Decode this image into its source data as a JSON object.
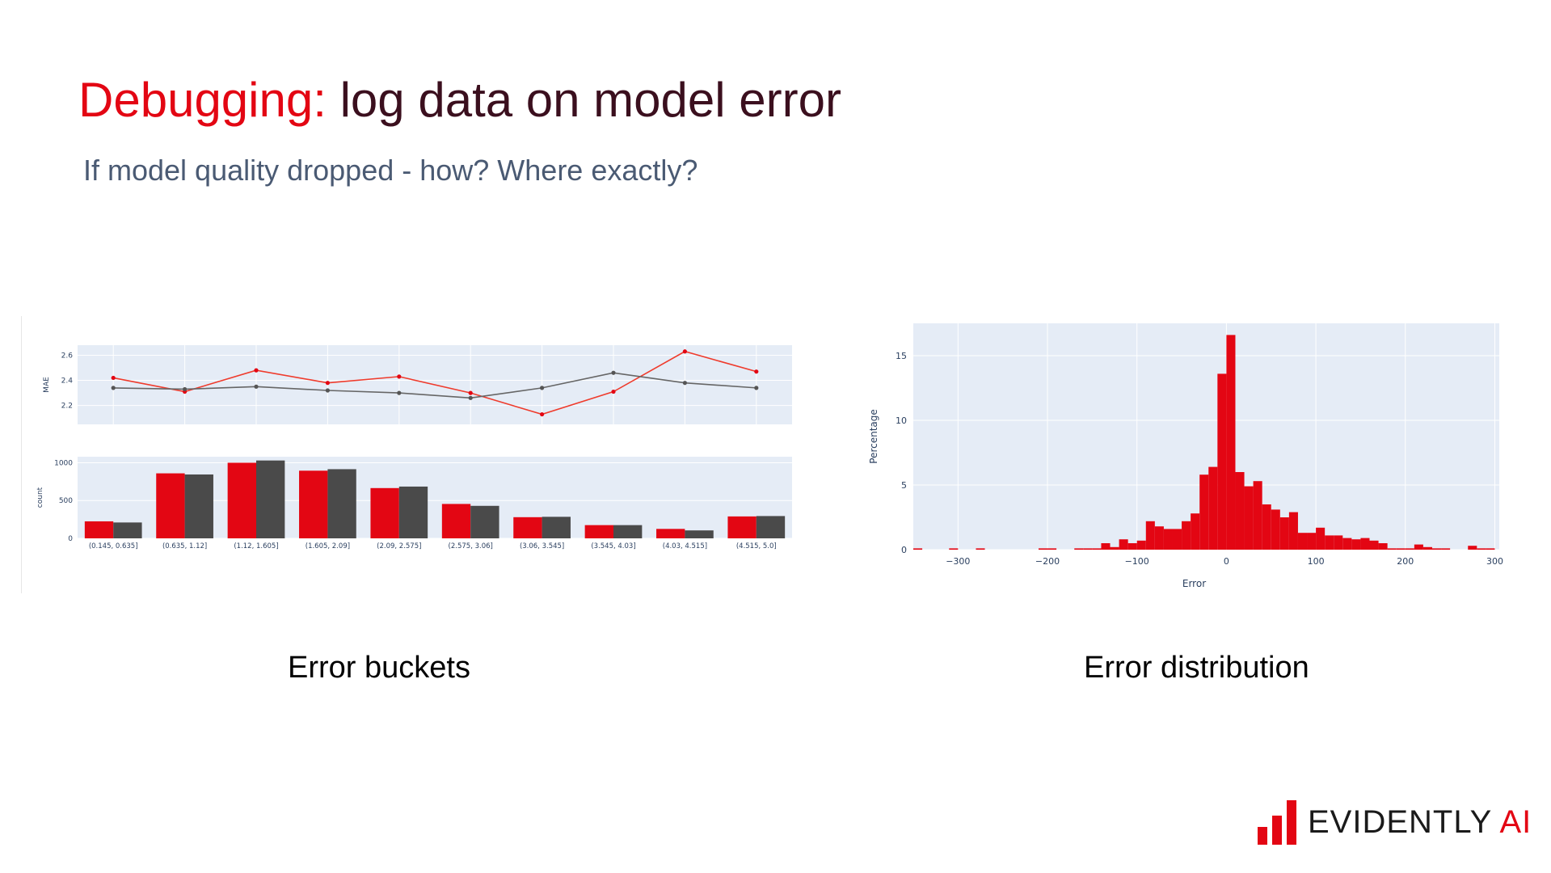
{
  "slide": {
    "title_accent": "Debugging:",
    "title_rest": " log data on model error",
    "subtitle": "If model quality dropped - how? Where exactly?",
    "caption_left": "Error buckets",
    "caption_right": "Error distribution",
    "logo_main": "EVIDENTLY",
    "logo_ai": " AI"
  },
  "colors": {
    "red": "#e30613",
    "dark": "#4a4a4a",
    "line_red": "#ef3b2c",
    "line_gray": "#666666",
    "plot_bg": "#e5ecf6"
  },
  "chart_data": [
    {
      "type": "line",
      "ylabel": "MAE",
      "ylim": [
        2.05,
        2.68
      ],
      "yticks": [
        "2.2",
        "2.4",
        "2.6"
      ],
      "categories": [
        "(0.145, 0.635]",
        "(0.635, 1.12]",
        "(1.12, 1.605]",
        "(1.605, 2.09]",
        "(2.09, 2.575]",
        "(2.575, 3.06]",
        "(3.06, 3.545]",
        "(3.545, 4.03]",
        "(4.03, 4.515]",
        "(4.515, 5.0]"
      ],
      "series": [
        {
          "values": [
            2.42,
            2.31,
            2.48,
            2.38,
            2.43,
            2.3,
            2.13,
            2.31,
            2.63,
            2.47
          ]
        },
        {
          "values": [
            2.34,
            2.33,
            2.35,
            2.32,
            2.3,
            2.26,
            2.34,
            2.46,
            2.38,
            2.34
          ]
        }
      ],
      "grid": true
    },
    {
      "type": "bar",
      "ylabel": "count",
      "ylim": [
        0,
        1080
      ],
      "yticks": [
        "0",
        "500",
        "1000"
      ],
      "categories": [
        "(0.145, 0.635]",
        "(0.635, 1.12]",
        "(1.12, 1.605]",
        "(1.605, 2.09]",
        "(2.09, 2.575]",
        "(2.575, 3.06]",
        "(3.06, 3.545]",
        "(3.545, 4.03]",
        "(4.03, 4.515]",
        "(4.515, 5.0]"
      ],
      "series": [
        {
          "values": [
            225,
            860,
            1000,
            895,
            665,
            455,
            280,
            175,
            125,
            290
          ]
        },
        {
          "values": [
            210,
            845,
            1030,
            915,
            685,
            430,
            285,
            175,
            105,
            295
          ]
        }
      ],
      "grid": true
    },
    {
      "type": "bar",
      "xlabel": "Error",
      "ylabel": "Percentage",
      "xlim": [
        -350,
        305
      ],
      "ylim": [
        0,
        17.5
      ],
      "xticks": [
        -300,
        -200,
        -100,
        0,
        100,
        200,
        300
      ],
      "xtick_labels": [
        "−300",
        "−200",
        "−100",
        "0",
        "100",
        "200",
        "300"
      ],
      "yticks": [
        0,
        5,
        10,
        15
      ],
      "bin_width": 10,
      "bins": [
        [
          -350,
          0.1
        ],
        [
          -310,
          0.1
        ],
        [
          -280,
          0.1
        ],
        [
          -210,
          0.1
        ],
        [
          -200,
          0.1
        ],
        [
          -170,
          0.1
        ],
        [
          -160,
          0.1
        ],
        [
          -150,
          0.1
        ],
        [
          -140,
          0.5
        ],
        [
          -130,
          0.2
        ],
        [
          -120,
          0.8
        ],
        [
          -110,
          0.5
        ],
        [
          -100,
          0.7
        ],
        [
          -90,
          2.2
        ],
        [
          -80,
          1.8
        ],
        [
          -70,
          1.6
        ],
        [
          -60,
          1.6
        ],
        [
          -50,
          2.2
        ],
        [
          -40,
          2.8
        ],
        [
          -30,
          5.8
        ],
        [
          -20,
          6.4
        ],
        [
          -10,
          13.6
        ],
        [
          0,
          16.6
        ],
        [
          10,
          6.0
        ],
        [
          20,
          4.9
        ],
        [
          30,
          5.3
        ],
        [
          40,
          3.5
        ],
        [
          50,
          3.1
        ],
        [
          60,
          2.5
        ],
        [
          70,
          2.9
        ],
        [
          80,
          1.3
        ],
        [
          90,
          1.3
        ],
        [
          100,
          1.7
        ],
        [
          110,
          1.1
        ],
        [
          120,
          1.1
        ],
        [
          130,
          0.9
        ],
        [
          140,
          0.8
        ],
        [
          150,
          0.9
        ],
        [
          160,
          0.7
        ],
        [
          170,
          0.5
        ],
        [
          180,
          0.1
        ],
        [
          190,
          0.1
        ],
        [
          200,
          0.1
        ],
        [
          210,
          0.4
        ],
        [
          220,
          0.2
        ],
        [
          230,
          0.1
        ],
        [
          240,
          0.1
        ],
        [
          270,
          0.3
        ],
        [
          280,
          0.1
        ],
        [
          290,
          0.1
        ]
      ],
      "grid": true
    }
  ]
}
